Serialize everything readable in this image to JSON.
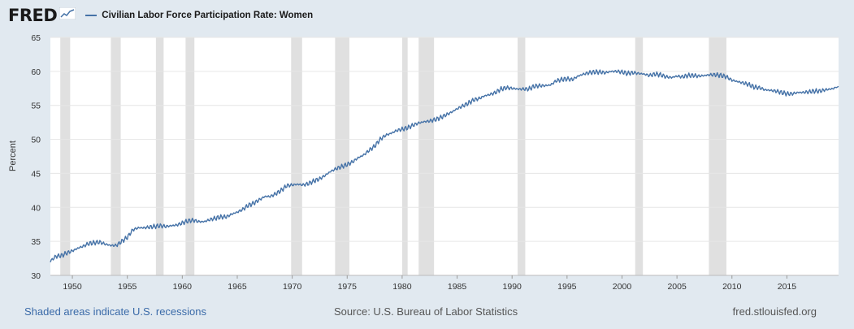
{
  "header": {
    "logo_text": "FRED",
    "logo_icon": "chart-line-icon",
    "series_label": "Civilian Labor Force Participation Rate: Women"
  },
  "footer": {
    "recessions_note": "Shaded areas indicate U.S. recessions",
    "source": "Source: U.S. Bureau of Labor Statistics",
    "site": "fred.stlouisfed.org"
  },
  "colors": {
    "line": "#4572a7",
    "recession": "#e0e0e0",
    "plot_bg": "#ffffff",
    "page_bg": "#e1e9f0",
    "link": "#3a6aa8"
  },
  "chart_data": {
    "type": "line",
    "title": "",
    "xlabel": "",
    "ylabel": "Percent",
    "xlim": [
      1948.0,
      2019.7
    ],
    "ylim": [
      30,
      65
    ],
    "y_ticks": [
      30,
      35,
      40,
      45,
      50,
      55,
      60,
      65
    ],
    "x_ticks": [
      1950,
      1955,
      1960,
      1965,
      1970,
      1975,
      1980,
      1985,
      1990,
      1995,
      2000,
      2005,
      2010,
      2015
    ],
    "grid": "horizontal",
    "recessions": [
      [
        1948.9,
        1949.8
      ],
      [
        1953.5,
        1954.4
      ],
      [
        1957.6,
        1958.3
      ],
      [
        1960.3,
        1961.1
      ],
      [
        1969.9,
        1970.9
      ],
      [
        1973.9,
        1975.2
      ],
      [
        1980.0,
        1980.5
      ],
      [
        1981.5,
        1982.9
      ],
      [
        1990.5,
        1991.2
      ],
      [
        2001.2,
        2001.9
      ],
      [
        2007.9,
        2009.5
      ]
    ],
    "series": [
      {
        "name": "Civilian Labor Force Participation Rate: Women",
        "x": [
          1948.0,
          1948.5,
          1949.0,
          1949.5,
          1950.0,
          1950.5,
          1951.0,
          1951.5,
          1952.0,
          1952.5,
          1953.0,
          1953.5,
          1954.0,
          1954.5,
          1955.0,
          1955.5,
          1956.0,
          1956.5,
          1957.0,
          1957.5,
          1958.0,
          1958.5,
          1959.0,
          1959.5,
          1960.0,
          1960.5,
          1961.0,
          1961.5,
          1962.0,
          1962.5,
          1963.0,
          1963.5,
          1964.0,
          1964.5,
          1965.0,
          1965.5,
          1966.0,
          1966.5,
          1967.0,
          1967.5,
          1968.0,
          1968.5,
          1969.0,
          1969.5,
          1970.0,
          1970.5,
          1971.0,
          1971.5,
          1972.0,
          1972.5,
          1973.0,
          1973.5,
          1974.0,
          1974.5,
          1975.0,
          1975.5,
          1976.0,
          1976.5,
          1977.0,
          1977.5,
          1978.0,
          1978.5,
          1979.0,
          1979.5,
          1980.0,
          1980.5,
          1981.0,
          1981.5,
          1982.0,
          1982.5,
          1983.0,
          1983.5,
          1984.0,
          1984.5,
          1985.0,
          1985.5,
          1986.0,
          1986.5,
          1987.0,
          1987.5,
          1988.0,
          1988.5,
          1989.0,
          1989.5,
          1990.0,
          1990.5,
          1991.0,
          1991.5,
          1992.0,
          1992.5,
          1993.0,
          1993.5,
          1994.0,
          1994.5,
          1995.0,
          1995.5,
          1996.0,
          1996.5,
          1997.0,
          1997.5,
          1998.0,
          1998.5,
          1999.0,
          1999.5,
          2000.0,
          2000.5,
          2001.0,
          2001.5,
          2002.0,
          2002.5,
          2003.0,
          2003.5,
          2004.0,
          2004.5,
          2005.0,
          2005.5,
          2006.0,
          2006.5,
          2007.0,
          2007.5,
          2008.0,
          2008.5,
          2009.0,
          2009.5,
          2010.0,
          2010.5,
          2011.0,
          2011.5,
          2012.0,
          2012.5,
          2013.0,
          2013.5,
          2014.0,
          2014.5,
          2015.0,
          2015.5,
          2016.0,
          2016.5,
          2017.0,
          2017.5,
          2018.0,
          2018.5,
          2019.0,
          2019.5
        ],
        "values": [
          32.1,
          32.8,
          32.9,
          33.3,
          33.6,
          34.0,
          34.3,
          34.7,
          34.8,
          34.9,
          34.6,
          34.4,
          34.4,
          35.0,
          35.6,
          36.7,
          37.0,
          37.0,
          37.1,
          37.2,
          37.3,
          37.2,
          37.3,
          37.4,
          37.7,
          38.0,
          38.1,
          37.9,
          37.9,
          38.2,
          38.4,
          38.6,
          38.6,
          39.0,
          39.3,
          39.7,
          40.3,
          40.6,
          41.1,
          41.6,
          41.6,
          42.0,
          42.5,
          43.2,
          43.3,
          43.4,
          43.3,
          43.5,
          43.9,
          44.2,
          44.7,
          45.3,
          45.7,
          46.0,
          46.3,
          46.7,
          47.3,
          47.7,
          48.4,
          49.0,
          50.0,
          50.6,
          50.9,
          51.3,
          51.5,
          51.7,
          52.1,
          52.4,
          52.6,
          52.7,
          52.9,
          53.2,
          53.6,
          54.0,
          54.5,
          54.9,
          55.3,
          55.8,
          56.0,
          56.4,
          56.6,
          56.9,
          57.4,
          57.6,
          57.5,
          57.4,
          57.4,
          57.4,
          57.8,
          57.9,
          57.9,
          58.0,
          58.6,
          58.8,
          58.9,
          58.8,
          59.3,
          59.6,
          59.8,
          59.9,
          59.9,
          59.8,
          60.0,
          60.0,
          59.9,
          59.7,
          59.8,
          59.7,
          59.6,
          59.4,
          59.6,
          59.5,
          59.2,
          59.1,
          59.3,
          59.2,
          59.4,
          59.4,
          59.3,
          59.4,
          59.5,
          59.5,
          59.4,
          59.2,
          58.7,
          58.5,
          58.3,
          58.1,
          57.7,
          57.6,
          57.3,
          57.2,
          57.1,
          56.9,
          56.7,
          56.7,
          56.9,
          56.9,
          57.0,
          57.1,
          57.1,
          57.3,
          57.4,
          57.6
        ]
      }
    ]
  }
}
